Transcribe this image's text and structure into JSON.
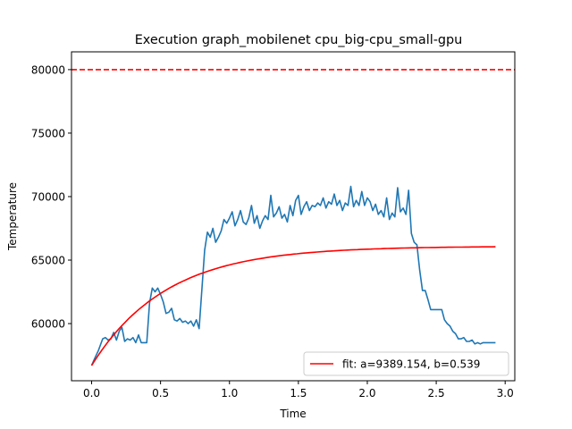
{
  "chart_data": {
    "type": "line",
    "title": "Execution graph_mobilenet cpu_big-cpu_small-gpu",
    "xlabel": "Time",
    "ylabel": "Temperature",
    "xlim": [
      -0.146,
      3.07
    ],
    "ylim": [
      55500,
      81400
    ],
    "xticks": [
      0.0,
      0.5,
      1.0,
      1.5,
      2.0,
      2.5,
      3.0
    ],
    "xtick_labels": [
      "0.0",
      "0.5",
      "1.0",
      "1.5",
      "2.0",
      "2.5",
      "3.0"
    ],
    "yticks": [
      60000,
      65000,
      70000,
      75000,
      80000
    ],
    "ytick_labels": [
      "60000",
      "65000",
      "70000",
      "75000",
      "80000"
    ],
    "threshold": {
      "y": 80000,
      "color": "#ff0000",
      "style": "dashed"
    },
    "series": [
      {
        "color": "#1f77b4",
        "x": [
          0.0,
          0.02,
          0.05,
          0.08,
          0.1,
          0.12,
          0.14,
          0.16,
          0.18,
          0.2,
          0.22,
          0.24,
          0.26,
          0.28,
          0.3,
          0.32,
          0.34,
          0.36,
          0.38,
          0.4,
          0.42,
          0.44,
          0.46,
          0.48,
          0.5,
          0.52,
          0.54,
          0.56,
          0.58,
          0.6,
          0.62,
          0.64,
          0.66,
          0.68,
          0.7,
          0.72,
          0.74,
          0.76,
          0.78,
          0.8,
          0.82,
          0.84,
          0.86,
          0.88,
          0.9,
          0.92,
          0.94,
          0.96,
          0.98,
          1.0,
          1.02,
          1.04,
          1.06,
          1.08,
          1.1,
          1.12,
          1.14,
          1.16,
          1.18,
          1.2,
          1.22,
          1.24,
          1.26,
          1.28,
          1.3,
          1.32,
          1.34,
          1.36,
          1.38,
          1.4,
          1.42,
          1.44,
          1.46,
          1.48,
          1.5,
          1.52,
          1.54,
          1.56,
          1.58,
          1.6,
          1.62,
          1.64,
          1.66,
          1.68,
          1.7,
          1.72,
          1.74,
          1.76,
          1.78,
          1.8,
          1.82,
          1.84,
          1.86,
          1.88,
          1.9,
          1.92,
          1.94,
          1.96,
          1.98,
          2.0,
          2.02,
          2.04,
          2.06,
          2.08,
          2.1,
          2.12,
          2.14,
          2.16,
          2.18,
          2.2,
          2.22,
          2.24,
          2.26,
          2.28,
          2.3,
          2.32,
          2.34,
          2.36,
          2.38,
          2.4,
          2.42,
          2.44,
          2.46,
          2.48,
          2.5,
          2.52,
          2.54,
          2.56,
          2.58,
          2.6,
          2.62,
          2.64,
          2.66,
          2.68,
          2.7,
          2.72,
          2.74,
          2.76,
          2.78,
          2.8,
          2.82,
          2.84,
          2.86,
          2.88,
          2.9,
          2.93
        ],
        "values": [
          56700,
          57200,
          57900,
          58800,
          58900,
          58700,
          58800,
          59300,
          58700,
          59400,
          59700,
          58600,
          58800,
          58700,
          58900,
          58500,
          59100,
          58500,
          58500,
          58500,
          61600,
          62800,
          62500,
          62800,
          62300,
          61700,
          60800,
          60900,
          61200,
          60300,
          60200,
          60400,
          60100,
          60200,
          60000,
          60200,
          59800,
          60300,
          59600,
          62700,
          65800,
          67200,
          66800,
          67500,
          66400,
          66800,
          67300,
          68200,
          67900,
          68300,
          68800,
          67700,
          68200,
          68900,
          68000,
          67800,
          68300,
          69300,
          67900,
          68500,
          67500,
          68100,
          68500,
          68200,
          70100,
          68400,
          68700,
          69200,
          68300,
          68600,
          68000,
          69300,
          68500,
          69700,
          70100,
          68600,
          69200,
          69600,
          68900,
          69300,
          69200,
          69500,
          69300,
          69900,
          69100,
          69600,
          69400,
          70200,
          69300,
          69700,
          68900,
          69500,
          69300,
          70800,
          69200,
          69700,
          69300,
          70400,
          69300,
          69900,
          69600,
          68900,
          69400,
          68600,
          68900,
          68400,
          69900,
          68200,
          68700,
          68400,
          70700,
          68800,
          69100,
          68600,
          70500,
          67100,
          66400,
          66200,
          64200,
          62600,
          62600,
          61900,
          61100,
          61100,
          61100,
          61100,
          61100,
          60300,
          60000,
          59800,
          59400,
          59200,
          58800,
          58800,
          58900,
          58600,
          58600,
          58700,
          58400,
          58500,
          58400,
          58500,
          58500,
          58500,
          58500,
          58500
        ]
      },
      {
        "name": "fit: a=9389.154, b=0.539",
        "color": "#ff0000",
        "fit": {
          "a": 9389.154,
          "b": 0.539,
          "base": 56700
        },
        "x_range": [
          0.0,
          2.93
        ]
      }
    ],
    "legend_loc": "lower right",
    "grid": false
  }
}
